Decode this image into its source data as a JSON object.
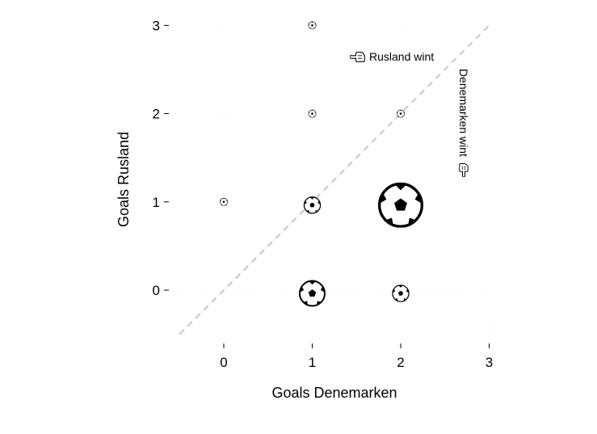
{
  "chart_data": {
    "type": "scatter",
    "xlabel": "Goals Denemarken",
    "ylabel": "Goals Rusland",
    "xlim": [
      -0.55,
      3.0
    ],
    "ylim": [
      -0.55,
      3.0
    ],
    "x_ticks": [
      0,
      1,
      2,
      3
    ],
    "y_ticks": [
      0,
      1,
      2,
      3
    ],
    "grid": true,
    "marker": "soccer-ball-icon",
    "points": [
      {
        "x": 1,
        "y": 3,
        "size": 1
      },
      {
        "x": 1,
        "y": 2,
        "size": 1
      },
      {
        "x": 2,
        "y": 2,
        "size": 1
      },
      {
        "x": 0,
        "y": 1,
        "size": 1
      },
      {
        "x": 1,
        "y": 1,
        "size": 2
      },
      {
        "x": 2,
        "y": 1,
        "size": 5
      },
      {
        "x": 1,
        "y": 0,
        "size": 3
      },
      {
        "x": 2,
        "y": 0,
        "size": 2
      }
    ],
    "reference_line": {
      "from": [
        -0.5,
        -0.5
      ],
      "to": [
        3,
        3
      ],
      "style": "dashed",
      "color": "#bbbbbb"
    },
    "annotations": {
      "top_left": {
        "text": "Rusland wint",
        "icon": "pointing-hand-left-icon"
      },
      "bottom_right": {
        "text": "Denemarken wint",
        "icon": "pointing-hand-down-icon",
        "rotation": "vertical"
      }
    }
  }
}
